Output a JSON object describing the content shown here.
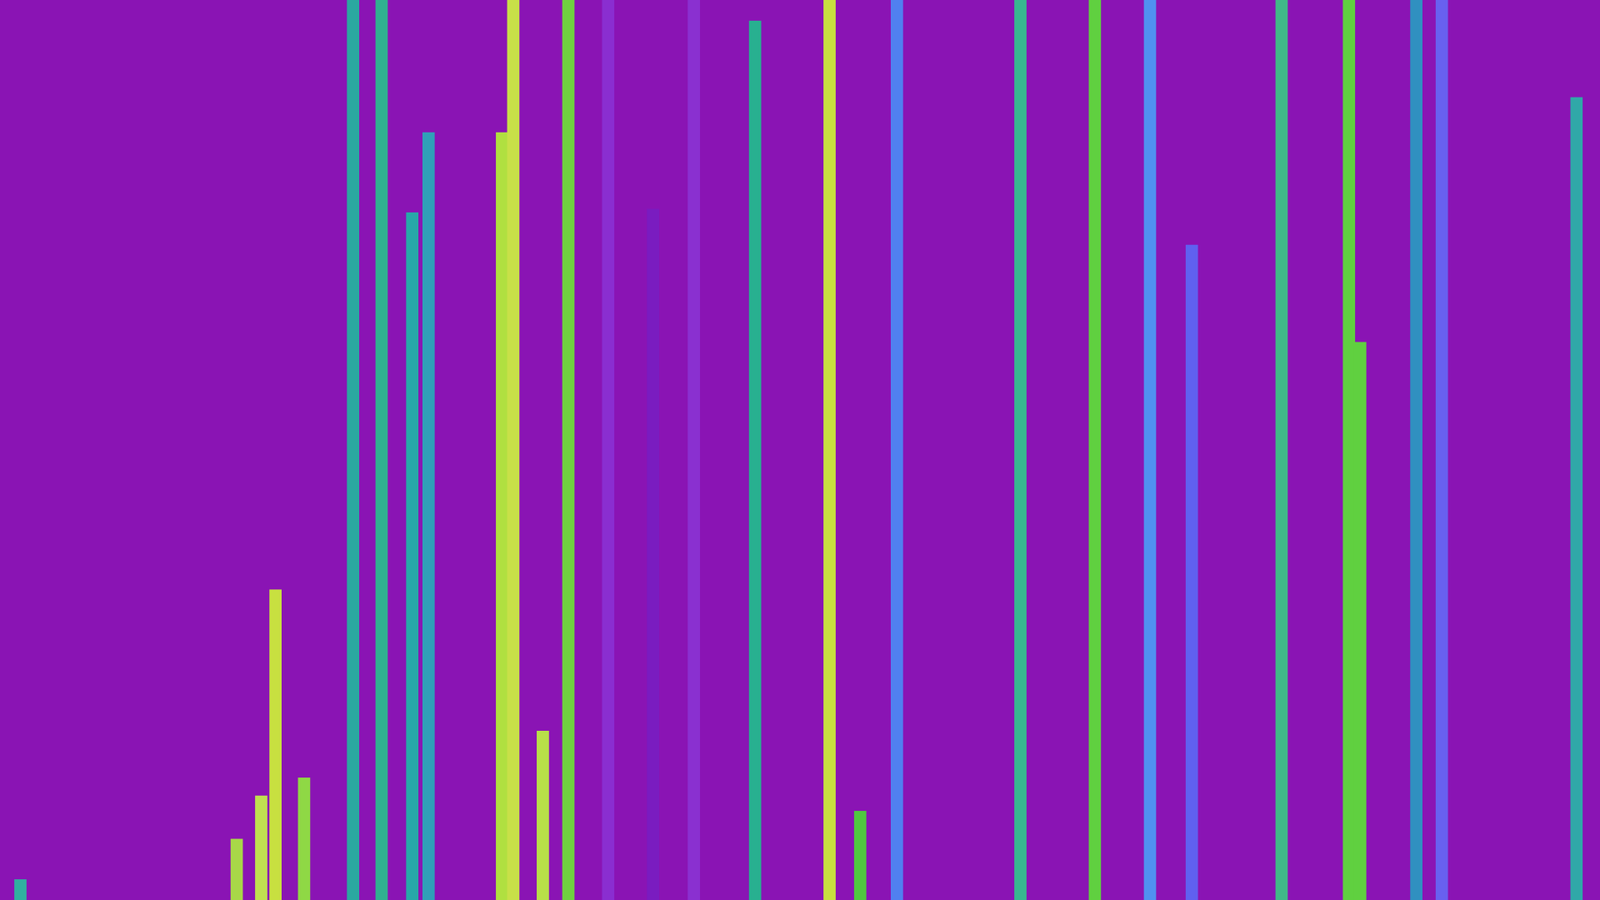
{
  "chart_data": {
    "type": "bar",
    "tick_labels": false,
    "xlim": [
      0,
      1568
    ],
    "ylim": [
      0,
      100
    ],
    "x": [
      20,
      232,
      256,
      270,
      298,
      346,
      374,
      404,
      420,
      492,
      503,
      532,
      557,
      596,
      640,
      680,
      740,
      813,
      843,
      879,
      1000,
      1073,
      1127,
      1168,
      1256,
      1322,
      1333,
      1388,
      1413,
      1545
    ],
    "values": [
      2.3,
      6.8,
      11.6,
      34.5,
      13.6,
      100,
      100,
      76.4,
      85.3,
      85.3,
      100,
      18.8,
      100,
      100,
      76.8,
      100,
      97.7,
      100,
      9.9,
      100,
      100,
      100,
      100,
      72.8,
      100,
      100,
      62,
      100,
      100,
      89.2
    ],
    "colors": [
      "#30b0a0",
      "#a8d848",
      "#c0e050",
      "#c8e040",
      "#8fd845",
      "#2aa8a0",
      "#30b090",
      "#28a8a8",
      "#30a0b8",
      "#b0e040",
      "#c8e048",
      "#b8e048",
      "#70d040",
      "#8a2ed0",
      "#7a1cc0",
      "#8a30d0",
      "#28b090",
      "#c8e040",
      "#50c840",
      "#5080f0",
      "#38b890",
      "#60d040",
      "#5090f0",
      "#6060f0",
      "#40b888",
      "#60d040",
      "#60d040",
      "#3090c0",
      "#6860f0",
      "#30a8a8"
    ]
  }
}
